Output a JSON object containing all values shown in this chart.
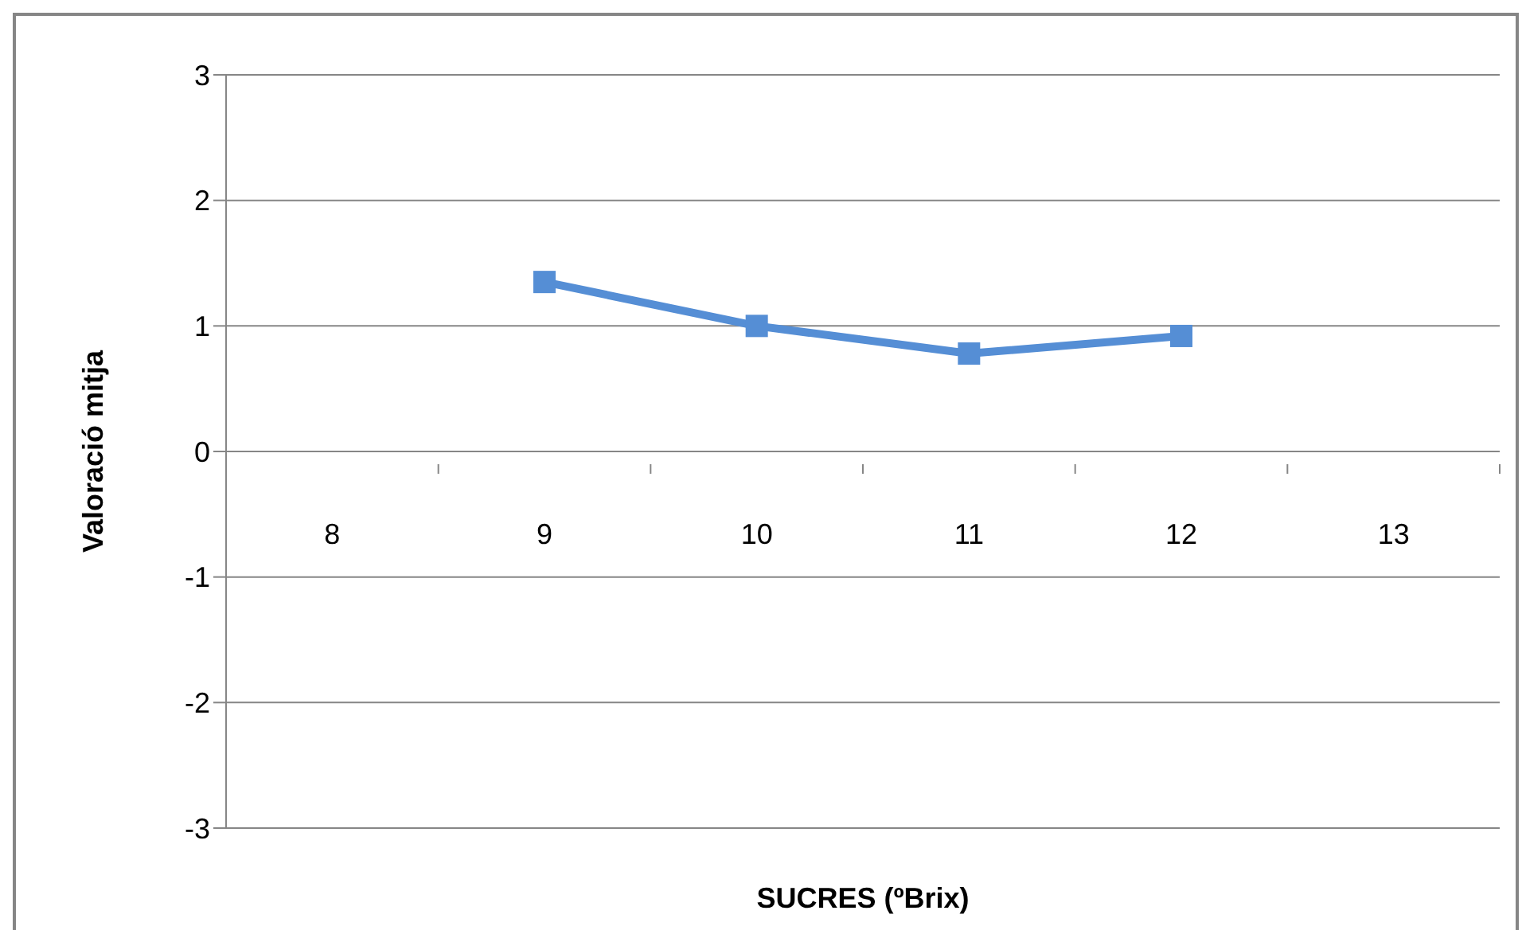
{
  "chart_data": {
    "type": "line",
    "xlabel": "SUCRES (ºBrix)",
    "ylabel": "Valoració mitja",
    "categories": [
      "8",
      "9",
      "10",
      "11",
      "12",
      "13"
    ],
    "series": [
      {
        "color": "#558ed5",
        "values": [
          null,
          1.35,
          1.0,
          0.78,
          0.92,
          null
        ]
      }
    ],
    "ylim": [
      -3,
      3
    ],
    "yticks": [
      -3,
      -2,
      -1,
      0,
      1,
      2,
      3
    ],
    "grid": "y",
    "legend": false,
    "marker": "square",
    "line_style": "solid"
  }
}
